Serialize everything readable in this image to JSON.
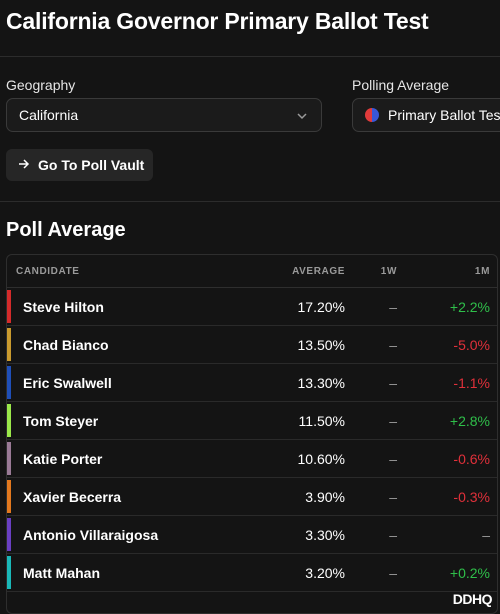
{
  "page": {
    "title": "California Governor Primary Ballot Test"
  },
  "filters": {
    "geography_label": "Geography",
    "geography_value": "California",
    "polling_label": "Polling Average",
    "polling_value": "Primary Ballot Test"
  },
  "actions": {
    "poll_vault": "Go To Poll Vault"
  },
  "poll_average": {
    "heading": "Poll Average",
    "columns": [
      "CANDIDATE",
      "AVERAGE",
      "1W",
      "1M"
    ],
    "rows": [
      {
        "name": "Steve Hilton",
        "average": "17.20%",
        "w1": "–",
        "m1": "+2.2%",
        "trend": "pos",
        "color": "#d42b2b"
      },
      {
        "name": "Chad Bianco",
        "average": "13.50%",
        "w1": "–",
        "m1": "-5.0%",
        "trend": "neg",
        "color": "#c99a2e"
      },
      {
        "name": "Eric Swalwell",
        "average": "13.30%",
        "w1": "–",
        "m1": "-1.1%",
        "trend": "neg",
        "color": "#1f4fb8"
      },
      {
        "name": "Tom Steyer",
        "average": "11.50%",
        "w1": "–",
        "m1": "+2.8%",
        "trend": "pos",
        "color": "#9be84a"
      },
      {
        "name": "Katie Porter",
        "average": "10.60%",
        "w1": "–",
        "m1": "-0.6%",
        "trend": "neg",
        "color": "#9a7a96"
      },
      {
        "name": "Xavier Becerra",
        "average": "3.90%",
        "w1": "–",
        "m1": "-0.3%",
        "trend": "neg",
        "color": "#e2781e"
      },
      {
        "name": "Antonio Villaraigosa",
        "average": "3.30%",
        "w1": "–",
        "m1": "–",
        "trend": "neu",
        "color": "#6a3fc2"
      },
      {
        "name": "Matt Mahan",
        "average": "3.20%",
        "w1": "–",
        "m1": "+0.2%",
        "trend": "pos",
        "color": "#1ab8b8"
      }
    ]
  },
  "brand": {
    "logo_text": "DDHQ"
  }
}
